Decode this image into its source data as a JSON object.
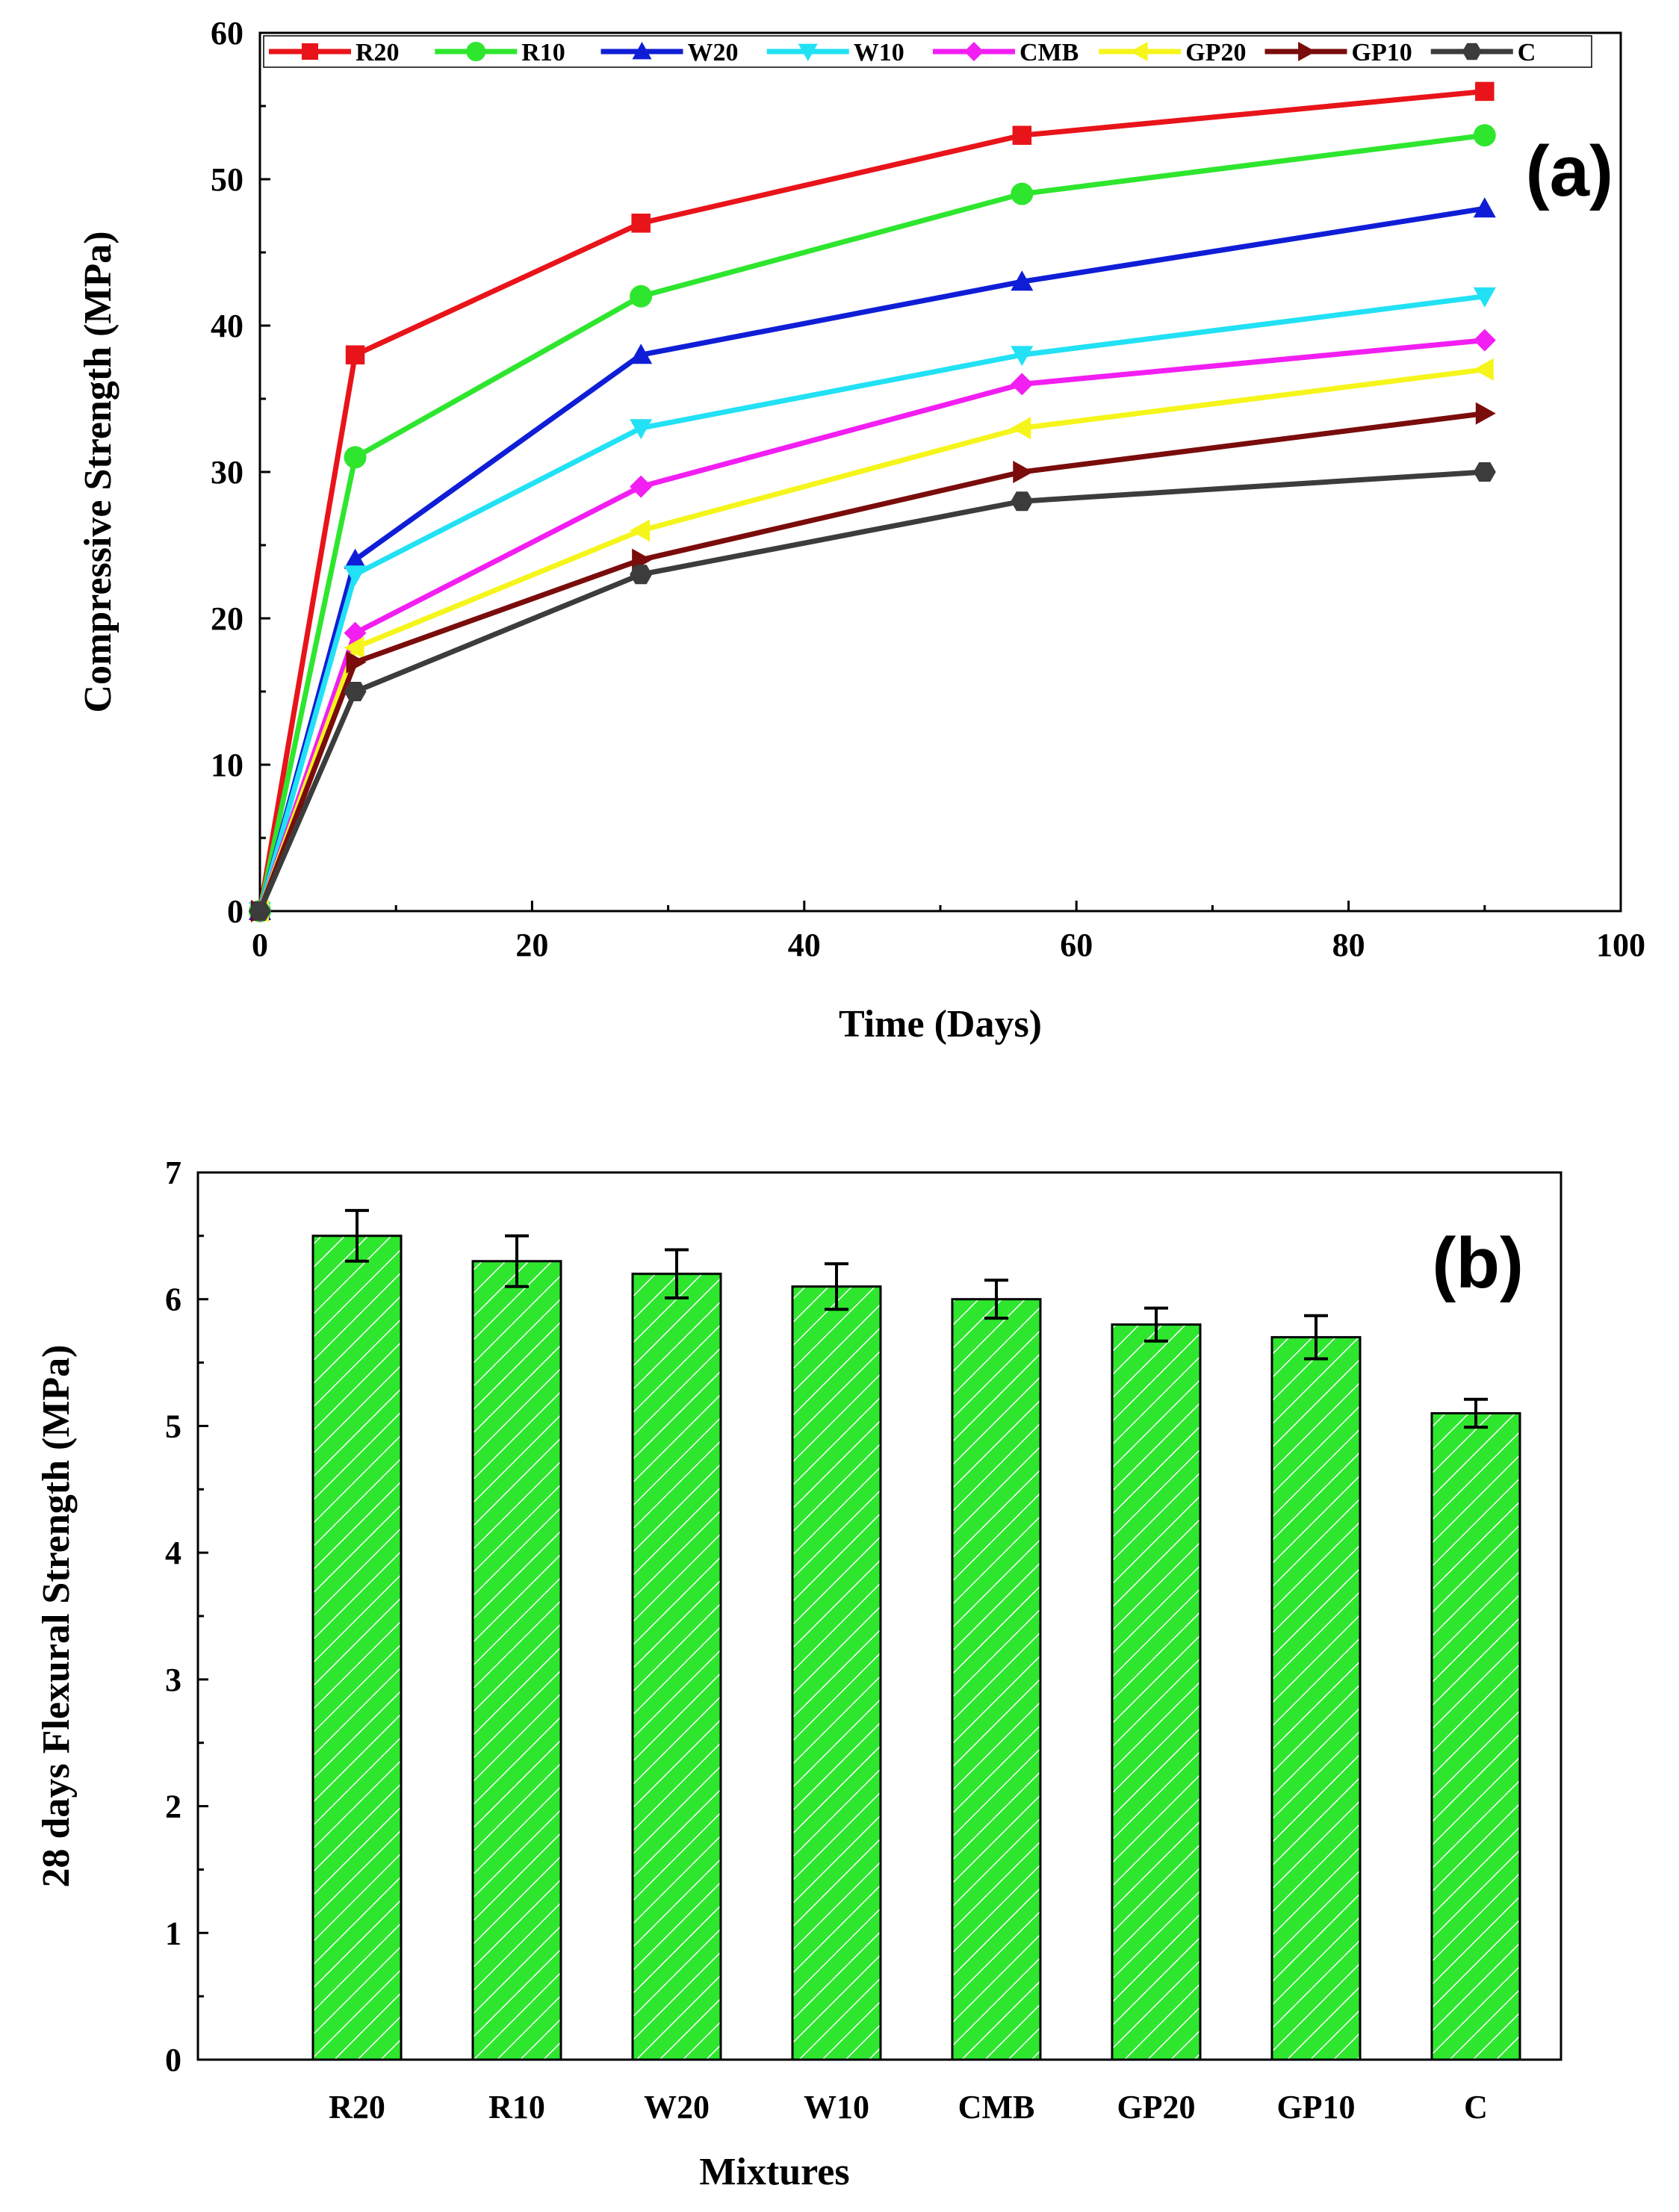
{
  "chart_data": [
    {
      "type": "line",
      "panel_label": "(a)",
      "xlabel": "Time (Days)",
      "ylabel": "Compressive Strength (MPa)",
      "xlim": [
        0,
        100
      ],
      "ylim": [
        0,
        60
      ],
      "xticks": [
        "0",
        "20",
        "40",
        "60",
        "80",
        "100"
      ],
      "yticks": [
        "0",
        "10",
        "20",
        "30",
        "40",
        "50",
        "60"
      ],
      "grid": false,
      "legend_position": "top",
      "x": [
        0,
        7,
        28,
        56,
        90
      ],
      "series": [
        {
          "name": "R20",
          "color": "#e8141a",
          "marker": "square",
          "values": [
            0,
            38,
            47,
            53,
            56
          ]
        },
        {
          "name": "R10",
          "color": "#2ee62e",
          "marker": "circle",
          "values": [
            0,
            31,
            42,
            49,
            53
          ]
        },
        {
          "name": "W20",
          "color": "#0f1ed6",
          "marker": "triangle-up",
          "values": [
            0,
            24,
            38,
            43,
            48
          ]
        },
        {
          "name": "W10",
          "color": "#22e1f5",
          "marker": "triangle-down",
          "values": [
            0,
            23,
            33,
            38,
            42
          ]
        },
        {
          "name": "CMB",
          "color": "#f21ef2",
          "marker": "diamond",
          "values": [
            0,
            19,
            29,
            36,
            39
          ]
        },
        {
          "name": "GP20",
          "color": "#f5f51c",
          "marker": "triangle-left",
          "values": [
            0,
            18,
            26,
            33,
            37
          ]
        },
        {
          "name": "GP10",
          "color": "#7a0c0c",
          "marker": "triangle-right",
          "values": [
            0,
            17,
            24,
            30,
            34
          ]
        },
        {
          "name": "C",
          "color": "#3c3c3c",
          "marker": "hexagon",
          "values": [
            0,
            15,
            23,
            28,
            30
          ]
        }
      ]
    },
    {
      "type": "bar",
      "panel_label": "(b)",
      "xlabel": "Mixtures",
      "ylabel": "28 days Flexural Strength (MPa)",
      "ylim": [
        0,
        7
      ],
      "yticks": [
        "0",
        "1",
        "2",
        "3",
        "4",
        "5",
        "6",
        "7"
      ],
      "grid": false,
      "bar_color": "#2ee62e",
      "bar_pattern": "diagonal-hatch-white",
      "categories": [
        "R20",
        "R10",
        "W20",
        "W10",
        "CMB",
        "GP20",
        "GP10",
        "C"
      ],
      "values": [
        6.5,
        6.3,
        6.2,
        6.1,
        6.0,
        5.8,
        5.7,
        5.1
      ],
      "error": [
        0.2,
        0.2,
        0.19,
        0.18,
        0.15,
        0.13,
        0.17,
        0.11
      ]
    }
  ]
}
